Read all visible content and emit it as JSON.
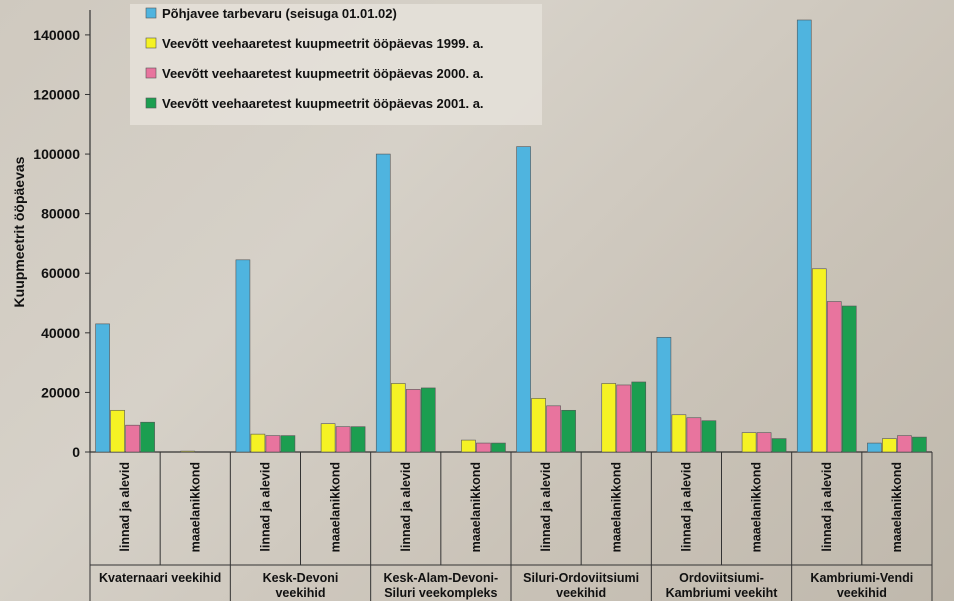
{
  "chart_data": {
    "type": "bar",
    "ylabel": "Kuupmeetrit ööpäevas",
    "ylim": [
      0,
      145000
    ],
    "yticks": [
      0,
      20000,
      40000,
      60000,
      80000,
      100000,
      120000,
      140000
    ],
    "categories": [
      "linnad ja alevid",
      "maaelanikkond",
      "linnad ja alevid",
      "maaelanikkond",
      "linnad ja alevid",
      "maaelanikkond",
      "linnad ja alevid",
      "maaelanikkond",
      "linnad ja alevid",
      "maaelanikkond",
      "linnad ja alevid",
      "maaelanikkond"
    ],
    "groups": [
      [
        "Kvaternaari veekihid"
      ],
      [
        "Kesk-Devoni",
        "veekihid"
      ],
      [
        "Kesk-Alam-Devoni-",
        "Siluri veekompleks"
      ],
      [
        "Siluri-Ordoviitsiumi",
        "veekihid"
      ],
      [
        "Ordoviitsiumi-",
        "Kambriumi veekiht"
      ],
      [
        "Kambriumi-Vendi",
        "veekihid"
      ]
    ],
    "series": [
      {
        "name": "Põhjavee tarbevaru (seisuga 01.01.02)",
        "color": "#4fb4df",
        "values": [
          43000,
          0,
          64500,
          0,
          100000,
          0,
          102500,
          0,
          38500,
          0,
          145000,
          3000
        ]
      },
      {
        "name": "Veevõtt veehaaretest kuupmeetrit ööpäevas 1999. a.",
        "color": "#f5f224",
        "values": [
          14000,
          300,
          6000,
          9500,
          23000,
          4000,
          18000,
          23000,
          12500,
          6500,
          61500,
          4500
        ]
      },
      {
        "name": "Veevõtt veehaaretest kuupmeetrit ööpäevas 2000. a.",
        "color": "#e8749e",
        "values": [
          9000,
          0,
          5500,
          8500,
          21000,
          3000,
          15500,
          22500,
          11500,
          6500,
          50500,
          5500
        ]
      },
      {
        "name": "Veevõtt veehaaretest kuupmeetrit ööpäevas 2001. a.",
        "color": "#1b9e50",
        "values": [
          10000,
          0,
          5500,
          8500,
          21500,
          3000,
          14000,
          23500,
          10500,
          4500,
          49000,
          5000
        ]
      }
    ],
    "legend_position": "top-left"
  }
}
